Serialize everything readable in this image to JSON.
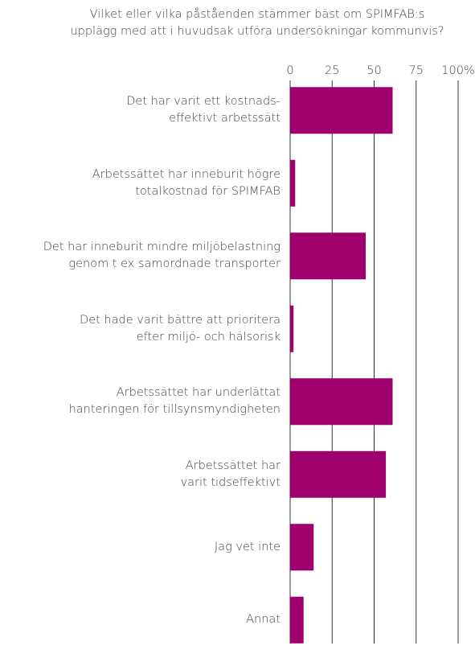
{
  "chart_data": {
    "type": "barh",
    "title": "Vilket eller vilka påståenden stämmer bäst om SPIMFAB:s\nupplägg med att i huvudsak utföra undersökningar kommunvis?",
    "categories": [
      "Det har varit ett kostnads-\neffektivt arbetssätt",
      "Arbetssättet har inneburit högre\ntotalkostnad för SPIMFAB",
      "Det har inneburit mindre miljöbelastning\ngenom t ex samordnade transporter",
      "Det hade varit bättre att prioritera\nefter miljö- och hälsorisk",
      "Arbetssättet har underlättat\nhanteringen för tillsynsmyndigheten",
      "Arbetssättet har\nvarit tidseffektivt",
      "Jag vet inte",
      "Annat"
    ],
    "values": [
      61,
      3,
      45,
      2,
      61,
      57,
      14,
      8
    ],
    "color": "#a0006e",
    "xlim": [
      0,
      100
    ],
    "xticks": [
      0,
      25,
      50,
      75,
      {
        "value": 100,
        "label": "100%"
      }
    ],
    "grid": true
  }
}
